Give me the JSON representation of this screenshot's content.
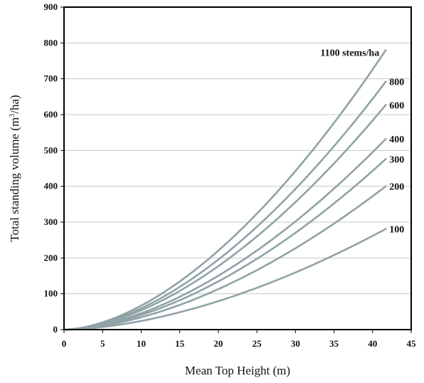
{
  "chart_data": {
    "type": "line",
    "xlabel": "Mean Top Height (m)",
    "ylabel_main": "Total standing volume (m",
    "ylabel_sup": "3",
    "ylabel_tail": "/ha)",
    "xlim": [
      0,
      45
    ],
    "ylim": [
      0,
      900
    ],
    "xticks": [
      0,
      5,
      10,
      15,
      20,
      25,
      30,
      35,
      40,
      45
    ],
    "yticks": [
      0,
      100,
      200,
      300,
      400,
      500,
      600,
      700,
      800,
      900
    ],
    "grid": "horizontal",
    "line_color": "#8fa3a6",
    "x_end": 41.7,
    "series": [
      {
        "name": "1100 stems/ha",
        "end_value": 780
      },
      {
        "name": "800",
        "end_value": 692
      },
      {
        "name": "600",
        "end_value": 627
      },
      {
        "name": "400",
        "end_value": 532
      },
      {
        "name": "300",
        "end_value": 476
      },
      {
        "name": "200",
        "end_value": 400
      },
      {
        "name": "100",
        "end_value": 281
      }
    ]
  }
}
